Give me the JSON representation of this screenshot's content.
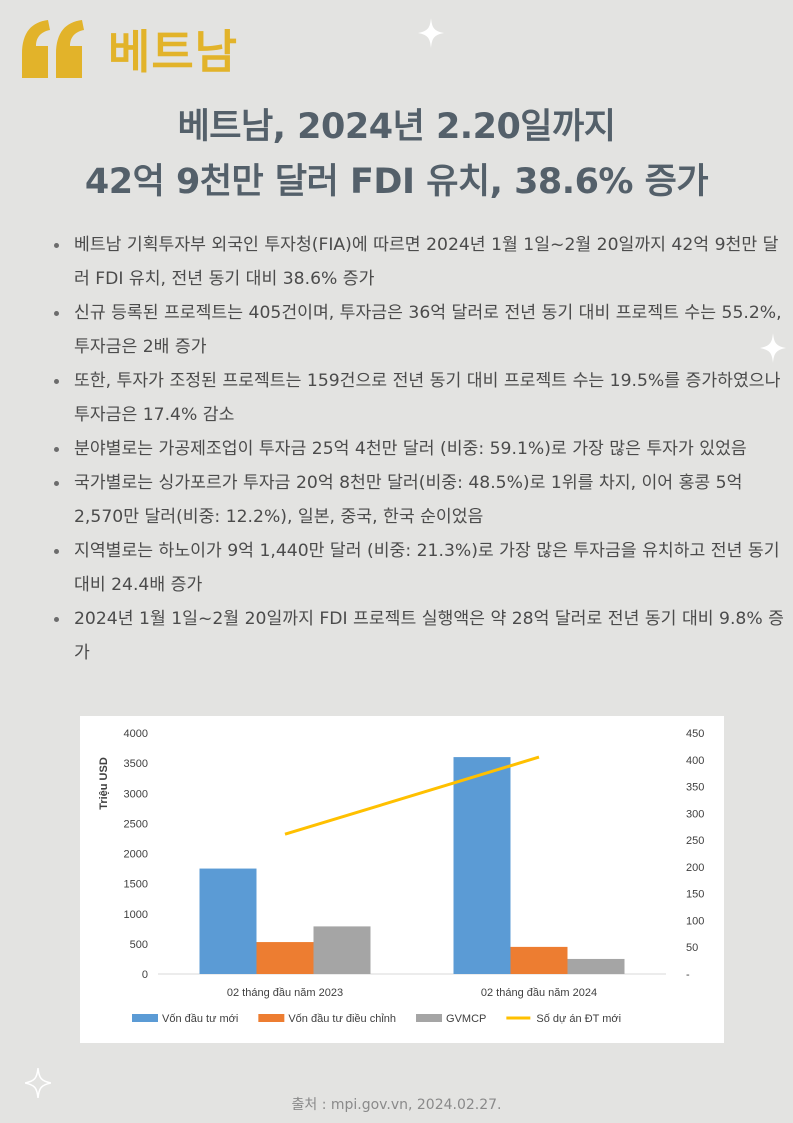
{
  "header": {
    "brand": "베트남",
    "quote_icon": "quote-icon",
    "title_line1": "베트남, 2024년 2.20일까지",
    "title_line2": "42억 9천만 달러 FDI 유치, 38.6% 증가"
  },
  "bullets": [
    "베트남 기획투자부 외국인 투자청(FIA)에 따르면 2024년 1월 1일~2월 20일까지 42억 9천만 달러 FDI 유치, 전년 동기 대비 38.6% 증가",
    "신규 등록된 프로젝트는 405건이며, 투자금은 36억 달러로 전년 동기 대비 프로젝트 수는 55.2%, 투자금은 2배 증가",
    "또한, 투자가 조정된 프로젝트는 159건으로 전년 동기 대비 프로젝트 수는 19.5%를 증가하였으나 투자금은 17.4% 감소",
    "분야별로는 가공제조업이 투자금 25억 4천만 달러 (비중: 59.1%)로 가장 많은 투자가 있었음",
    "국가별로는 싱가포르가 투자금 20억 8천만 달러(비중: 48.5%)로 1위를 차지, 이어 홍콩 5억 2,570만 달러(비중: 12.2%), 일본, 중국, 한국 순이었음",
    "지역별로는 하노이가 9억 1,440만 달러 (비중: 21.3%)로 가장 많은 투자금을 유치하고 전년 동기 대비 24.4배 증가",
    "2024년 1월 1일~2월 20일까지 FDI 프로젝트 실행액은 약 28억 달러로 전년 동기 대비 9.8% 증가"
  ],
  "chart_data": {
    "type": "bar",
    "categories": [
      "02 tháng đầu năm 2023",
      "02 tháng đầu năm 2024"
    ],
    "series": [
      {
        "name": "Vốn đầu tư mới",
        "type": "bar",
        "axis": "left",
        "color": "#5b9bd5",
        "values": [
          1750,
          3600
        ]
      },
      {
        "name": "Vốn đầu tư điều chỉnh",
        "type": "bar",
        "axis": "left",
        "color": "#ed7d31",
        "values": [
          530,
          450
        ]
      },
      {
        "name": "GVMCP",
        "type": "bar",
        "axis": "left",
        "color": "#a5a5a5",
        "values": [
          790,
          250
        ]
      },
      {
        "name": "Số dự án ĐT mới",
        "type": "line",
        "axis": "right",
        "color": "#ffc000",
        "values": [
          261,
          405
        ]
      }
    ],
    "ylabel": "Triệu USD",
    "ylim": [
      0,
      4000
    ],
    "yticks": [
      "0",
      "500",
      "1000",
      "1500",
      "2000",
      "2500",
      "3000",
      "3500",
      "4000"
    ],
    "y2lim": [
      0,
      450
    ],
    "y2ticks": [
      "-",
      "50",
      "100",
      "150",
      "200",
      "250",
      "300",
      "350",
      "400",
      "450"
    ],
    "grid": false,
    "legend": "bottom"
  },
  "footer": {
    "source": "출처 : mpi.gov.vn, 2024.02.27."
  }
}
